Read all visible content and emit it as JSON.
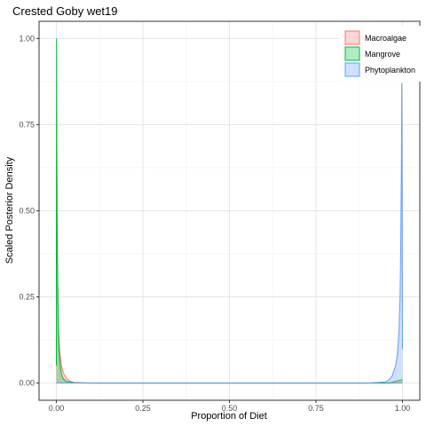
{
  "chart_data": {
    "type": "area",
    "title": "Crested Goby wet19",
    "xlabel": "Proportion of Diet",
    "ylabel": "Scaled Posterior Density",
    "xlim": [
      -0.05,
      1.05
    ],
    "ylim": [
      -0.05,
      1.05
    ],
    "x_ticks": [
      0.0,
      0.25,
      0.5,
      0.75,
      1.0
    ],
    "x_tick_labels": [
      "0.00",
      "0.25",
      "0.50",
      "0.75",
      "1.00"
    ],
    "y_ticks": [
      0.0,
      0.25,
      0.5,
      0.75,
      1.0
    ],
    "y_tick_labels": [
      "0.00",
      "0.25",
      "0.50",
      "0.75",
      "1.00"
    ],
    "grid": true,
    "legend_position": "top-right",
    "series": [
      {
        "name": "Macroalgae",
        "line_color": "#F8766D",
        "fill_color": "#F8766D",
        "x": [
          0.0,
          0.001,
          0.002,
          0.004,
          0.006,
          0.008,
          0.01,
          0.015,
          0.02,
          0.03,
          0.04,
          0.05,
          0.1,
          0.5,
          0.9,
          1.0
        ],
        "y": [
          0.2,
          0.75,
          0.45,
          0.28,
          0.18,
          0.12,
          0.09,
          0.05,
          0.03,
          0.012,
          0.005,
          0.002,
          0.0,
          0.0,
          0.0,
          0.0
        ]
      },
      {
        "name": "Mangrove",
        "line_color": "#00BA38",
        "fill_color": "#00BA38",
        "x": [
          0.0,
          0.0005,
          0.001,
          0.002,
          0.003,
          0.005,
          0.007,
          0.01,
          0.015,
          0.02,
          0.03,
          0.05,
          0.1,
          0.5,
          0.9,
          0.96,
          0.97,
          0.98,
          1.0
        ],
        "y": [
          0.05,
          1.0,
          0.8,
          0.5,
          0.38,
          0.22,
          0.12,
          0.06,
          0.025,
          0.012,
          0.004,
          0.001,
          0.0,
          0.0,
          0.0,
          0.0,
          0.002,
          0.005,
          0.01
        ]
      },
      {
        "name": "Phytoplankton",
        "line_color": "#619CFF",
        "fill_color": "#619CFF",
        "x": [
          0.0,
          0.05,
          0.5,
          0.9,
          0.95,
          0.96,
          0.97,
          0.98,
          0.985,
          0.99,
          0.993,
          0.995,
          0.997,
          0.998,
          0.999,
          1.0
        ],
        "y": [
          0.0,
          0.0,
          0.0,
          0.0,
          0.003,
          0.008,
          0.02,
          0.05,
          0.08,
          0.15,
          0.25,
          0.4,
          0.65,
          0.87,
          0.6,
          0.1
        ]
      }
    ]
  },
  "legend": {
    "items": [
      {
        "label": "Macroalgae",
        "fill": "#F8766D"
      },
      {
        "label": "Mangrove",
        "fill": "#00BA38"
      },
      {
        "label": "Phytoplankton",
        "fill": "#619CFF"
      }
    ]
  }
}
